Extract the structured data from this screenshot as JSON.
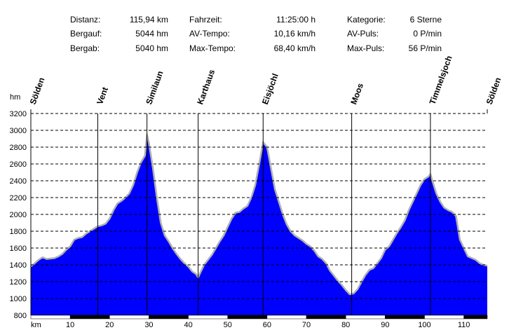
{
  "stats": [
    {
      "label": "Distanz:",
      "value": "115,94 km"
    },
    {
      "label": "Bergauf:",
      "value": "5044 hm"
    },
    {
      "label": "Bergab:",
      "value": "5040 hm"
    },
    {
      "label": "Fahrzeit:",
      "value": "11:25:00 h"
    },
    {
      "label": "AV-Tempo:",
      "value": "10,16 km/h"
    },
    {
      "label": "Max-Tempo:",
      "value": "68,40 km/h"
    },
    {
      "label": "Kategorie:",
      "value": "6 Sterne"
    },
    {
      "label": "AV-Puls:",
      "value": "0 P/min"
    },
    {
      "label": "Max-Puls:",
      "value": "56 P/min"
    }
  ],
  "colors": {
    "fill": "#0000ff",
    "outline": "#b0b0b0",
    "grid": "#000000",
    "axis_bar": "#000000"
  },
  "chart_data": {
    "type": "area",
    "xlabel": "km",
    "ylabel": "hm",
    "xlim": [
      0,
      115.94
    ],
    "ylim": [
      800,
      3200
    ],
    "x_ticks": [
      10,
      20,
      30,
      40,
      50,
      60,
      70,
      80,
      90,
      100,
      110
    ],
    "y_ticks": [
      800,
      1000,
      1200,
      1400,
      1600,
      1800,
      2000,
      2200,
      2400,
      2600,
      2800,
      3000,
      3200
    ],
    "grid": "horizontal-dashed",
    "waypoints": [
      {
        "name": "Sölden",
        "km": 0
      },
      {
        "name": "Vent",
        "km": 17
      },
      {
        "name": "Similaun",
        "km": 29.5
      },
      {
        "name": "Karthaus",
        "km": 42.5
      },
      {
        "name": "Eisjöchl",
        "km": 59
      },
      {
        "name": "Moos",
        "km": 81.5
      },
      {
        "name": "Timmelsjoch",
        "km": 101.5
      },
      {
        "name": "Sölden",
        "km": 115.94
      }
    ],
    "series": [
      {
        "points": [
          [
            0,
            1380
          ],
          [
            1,
            1420
          ],
          [
            2,
            1460
          ],
          [
            3,
            1490
          ],
          [
            4,
            1470
          ],
          [
            5,
            1475
          ],
          [
            6,
            1480
          ],
          [
            7,
            1500
          ],
          [
            8,
            1530
          ],
          [
            9,
            1580
          ],
          [
            10,
            1620
          ],
          [
            11,
            1700
          ],
          [
            12,
            1720
          ],
          [
            13,
            1730
          ],
          [
            14,
            1770
          ],
          [
            15,
            1800
          ],
          [
            16,
            1830
          ],
          [
            17,
            1860
          ],
          [
            18,
            1870
          ],
          [
            19,
            1890
          ],
          [
            20,
            1950
          ],
          [
            21,
            2050
          ],
          [
            22,
            2130
          ],
          [
            23,
            2160
          ],
          [
            24,
            2200
          ],
          [
            25,
            2250
          ],
          [
            26,
            2350
          ],
          [
            27,
            2500
          ],
          [
            28,
            2620
          ],
          [
            29,
            2700
          ],
          [
            29.5,
            2950
          ],
          [
            30,
            2850
          ],
          [
            31,
            2550
          ],
          [
            32,
            2200
          ],
          [
            33,
            1900
          ],
          [
            34,
            1750
          ],
          [
            35,
            1680
          ],
          [
            36,
            1600
          ],
          [
            37,
            1530
          ],
          [
            38,
            1470
          ],
          [
            39,
            1420
          ],
          [
            40,
            1380
          ],
          [
            41,
            1320
          ],
          [
            42,
            1290
          ],
          [
            42.5,
            1250
          ],
          [
            43,
            1300
          ],
          [
            44,
            1400
          ],
          [
            45,
            1460
          ],
          [
            46,
            1520
          ],
          [
            47,
            1600
          ],
          [
            48,
            1680
          ],
          [
            49,
            1750
          ],
          [
            50,
            1850
          ],
          [
            51,
            1950
          ],
          [
            52,
            2020
          ],
          [
            53,
            2030
          ],
          [
            54,
            2070
          ],
          [
            55,
            2100
          ],
          [
            56,
            2200
          ],
          [
            57,
            2350
          ],
          [
            58,
            2600
          ],
          [
            59,
            2860
          ],
          [
            60,
            2800
          ],
          [
            61,
            2550
          ],
          [
            62,
            2300
          ],
          [
            63,
            2150
          ],
          [
            64,
            2000
          ],
          [
            65,
            1880
          ],
          [
            66,
            1800
          ],
          [
            67,
            1750
          ],
          [
            68,
            1720
          ],
          [
            69,
            1690
          ],
          [
            70,
            1650
          ],
          [
            71,
            1620
          ],
          [
            72,
            1570
          ],
          [
            73,
            1500
          ],
          [
            74,
            1470
          ],
          [
            75,
            1420
          ],
          [
            76,
            1330
          ],
          [
            77,
            1270
          ],
          [
            78,
            1210
          ],
          [
            79,
            1160
          ],
          [
            80,
            1100
          ],
          [
            81,
            1050
          ],
          [
            82,
            1060
          ],
          [
            83,
            1110
          ],
          [
            84,
            1200
          ],
          [
            85,
            1280
          ],
          [
            86,
            1340
          ],
          [
            87,
            1360
          ],
          [
            88,
            1420
          ],
          [
            89,
            1480
          ],
          [
            90,
            1580
          ],
          [
            91,
            1620
          ],
          [
            92,
            1700
          ],
          [
            93,
            1780
          ],
          [
            94,
            1850
          ],
          [
            95,
            1930
          ],
          [
            96,
            2050
          ],
          [
            97,
            2150
          ],
          [
            98,
            2250
          ],
          [
            99,
            2350
          ],
          [
            100,
            2420
          ],
          [
            101,
            2450
          ],
          [
            101.5,
            2480
          ],
          [
            102,
            2400
          ],
          [
            103,
            2250
          ],
          [
            104,
            2150
          ],
          [
            105,
            2080
          ],
          [
            106,
            2050
          ],
          [
            107,
            2030
          ],
          [
            108,
            1980
          ],
          [
            109,
            1700
          ],
          [
            110,
            1600
          ],
          [
            111,
            1500
          ],
          [
            112,
            1480
          ],
          [
            113,
            1460
          ],
          [
            114,
            1420
          ],
          [
            115,
            1400
          ],
          [
            115.94,
            1390
          ]
        ]
      }
    ]
  }
}
